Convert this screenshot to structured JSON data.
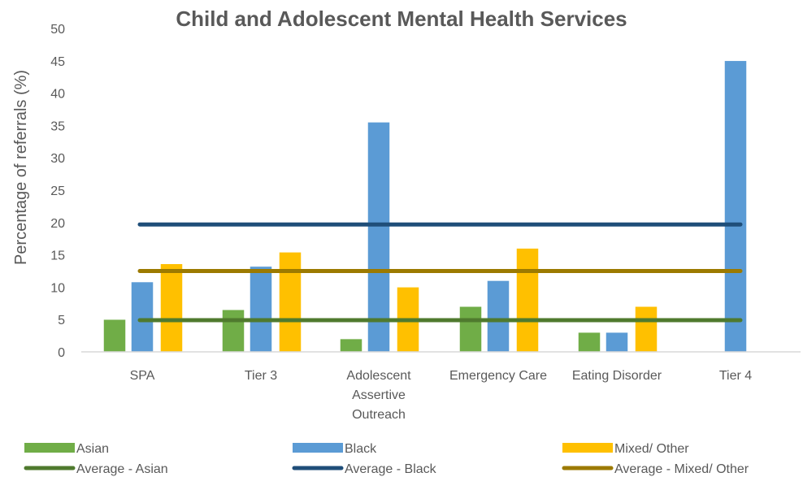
{
  "chart_data": {
    "type": "bar",
    "title": "Child and Adolescent Mental Health Services",
    "ylabel": "Percentage of referrals (%)",
    "xlabel": "",
    "ylim": [
      0,
      50
    ],
    "yticks": [
      0,
      5,
      10,
      15,
      20,
      25,
      30,
      35,
      40,
      45,
      50
    ],
    "grid": false,
    "legend_position": "bottom",
    "categories": [
      [
        "SPA"
      ],
      [
        "Tier 3"
      ],
      [
        "Adolescent",
        "Assertive",
        "Outreach"
      ],
      [
        "Emergency Care"
      ],
      [
        "Eating Disorder"
      ],
      [
        "Tier 4"
      ]
    ],
    "series": [
      {
        "name": "Asian",
        "color": "#70ad47",
        "values": [
          5,
          6.5,
          2,
          7,
          3,
          0
        ]
      },
      {
        "name": "Black",
        "color": "#5b9bd5",
        "values": [
          10.8,
          13.2,
          35.5,
          11,
          3,
          45
        ]
      },
      {
        "name": "Mixed/ Other",
        "color": "#ffc000",
        "values": [
          13.6,
          15.4,
          10,
          16,
          7,
          0
        ]
      }
    ],
    "average_lines": [
      {
        "name": "Average - Asian",
        "color": "#4f7a2e",
        "value": 4.9
      },
      {
        "name": "Average - Black",
        "color": "#1f4e79",
        "value": 19.7
      },
      {
        "name": "Average - Mixed/ Other",
        "color": "#9c7a00",
        "value": 12.5
      }
    ]
  }
}
